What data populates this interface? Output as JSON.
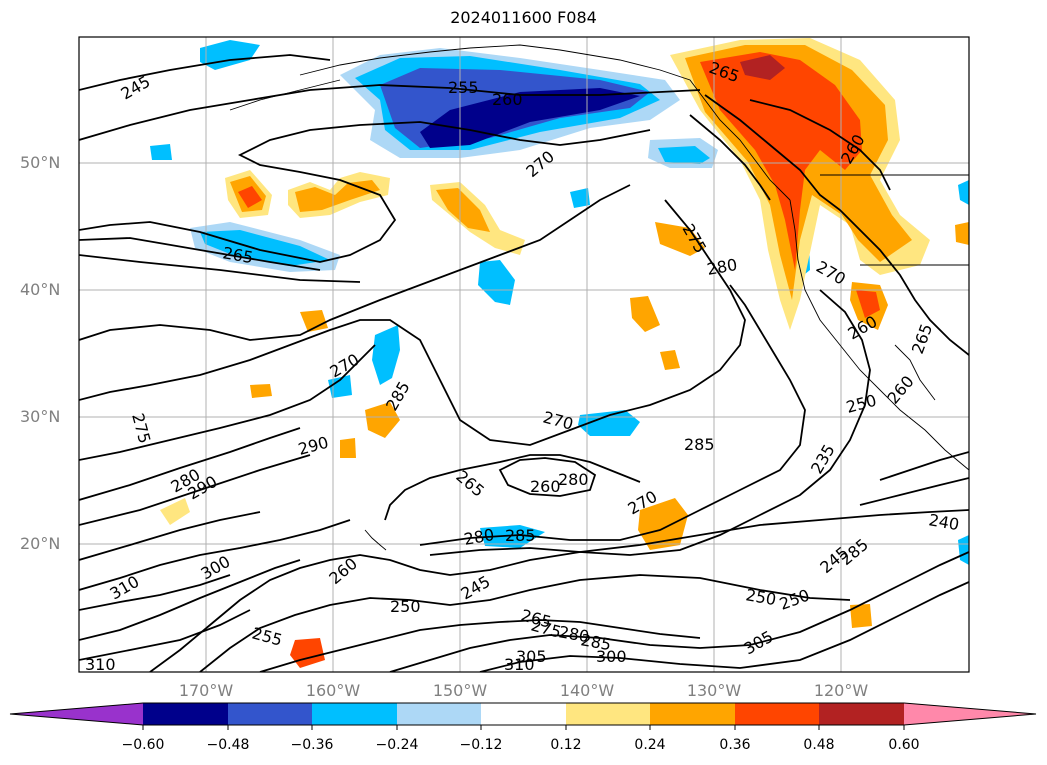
{
  "title": "2024011600 F084",
  "lat_labels": [
    "50°N",
    "40°N",
    "30°N",
    "20°N"
  ],
  "lon_labels": [
    "170°W",
    "160°W",
    "150°W",
    "140°W",
    "130°W",
    "120°W"
  ],
  "colorbar": {
    "ticks": [
      "−0.60",
      "−0.48",
      "−0.36",
      "−0.24",
      "−0.12",
      "0.12",
      "0.24",
      "0.36",
      "0.48",
      "0.60"
    ],
    "colors": [
      "#9932CC",
      "#00008B",
      "#3355CC",
      "#00BFFF",
      "#ADD8F6",
      "#FFFFFF",
      "#FFE680",
      "#FFA500",
      "#FF4500",
      "#B22222",
      "#FF88AA"
    ]
  },
  "contour_labels": [
    "245",
    "250",
    "255",
    "260",
    "265",
    "270",
    "275",
    "280",
    "285",
    "290",
    "305",
    "310",
    "300",
    "235",
    "240"
  ]
}
